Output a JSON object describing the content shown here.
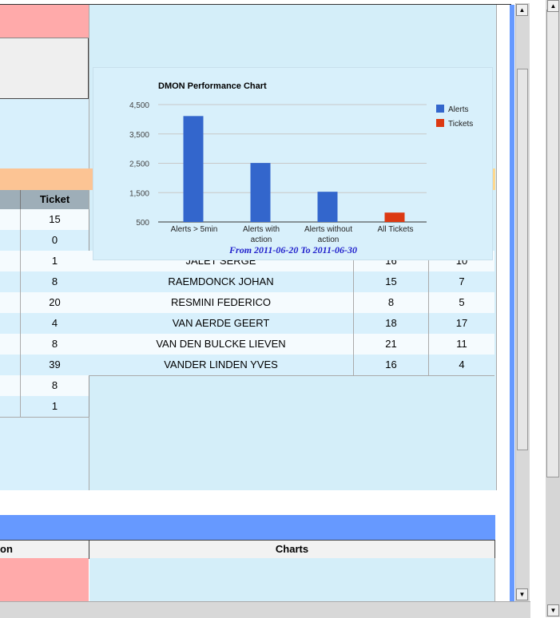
{
  "left_table": {
    "ticket_header": "Ticket",
    "tickets": [
      "15",
      "0",
      "1",
      "8",
      "20",
      "4",
      "8",
      "39",
      "8",
      "1"
    ]
  },
  "right_table": {
    "rows": [
      {
        "name": "JALET SERGE",
        "alerts": "16",
        "tickets": "10"
      },
      {
        "name": "RAEMDONCK JOHAN",
        "alerts": "15",
        "tickets": "7"
      },
      {
        "name": "RESMINI FEDERICO",
        "alerts": "8",
        "tickets": "5"
      },
      {
        "name": "VAN AERDE GEERT",
        "alerts": "18",
        "tickets": "17"
      },
      {
        "name": "VAN DEN BULCKE LIEVEN",
        "alerts": "21",
        "tickets": "11"
      },
      {
        "name": "VANDER LINDEN YVES",
        "alerts": "16",
        "tickets": "4"
      }
    ]
  },
  "bottom": {
    "left_header": "on",
    "charts_header": "Charts"
  },
  "colors": {
    "alerts": "#3366cc",
    "tickets": "#dc3912",
    "footer_text": "#2222cc"
  },
  "chart_data": {
    "type": "bar",
    "title": "DMON Performance Chart",
    "categories": [
      "Alerts > 5min",
      "Alerts with action",
      "Alerts without action",
      "All Tickets"
    ],
    "series": [
      {
        "name": "Alerts",
        "values": [
          4110,
          2510,
          1530,
          0
        ]
      },
      {
        "name": "Tickets",
        "values": [
          0,
          0,
          0,
          820
        ]
      }
    ],
    "y_ticks": [
      "4,500",
      "3,500",
      "2,500",
      "1,500",
      "500"
    ],
    "ylim": [
      500,
      4500
    ],
    "grid": true,
    "legend": "right",
    "footer": "From 2011-06-20 To 2011-06-30"
  }
}
